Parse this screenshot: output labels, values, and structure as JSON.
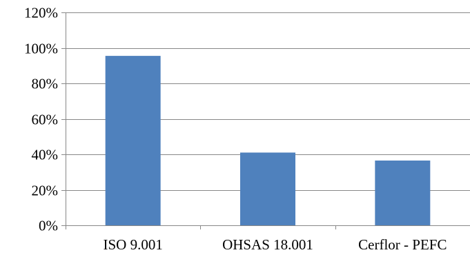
{
  "chart_data": {
    "type": "bar",
    "title": "",
    "xlabel": "",
    "ylabel": "",
    "categories": [
      "ISO 9.001",
      "OHSAS 18.001",
      "Cerflor - PEFC"
    ],
    "values": [
      0.955,
      0.41,
      0.365
    ],
    "ylim": [
      0,
      1.2
    ],
    "yticks": [
      0,
      0.2,
      0.4,
      0.6,
      0.8,
      1.0,
      1.2
    ],
    "ytick_labels": [
      "0%",
      "20%",
      "40%",
      "60%",
      "80%",
      "100%",
      "120%"
    ],
    "grid": true,
    "legend": "none",
    "colors": {
      "bar": "#4f81bd",
      "grid": "#878787",
      "axis": "#878787"
    }
  }
}
